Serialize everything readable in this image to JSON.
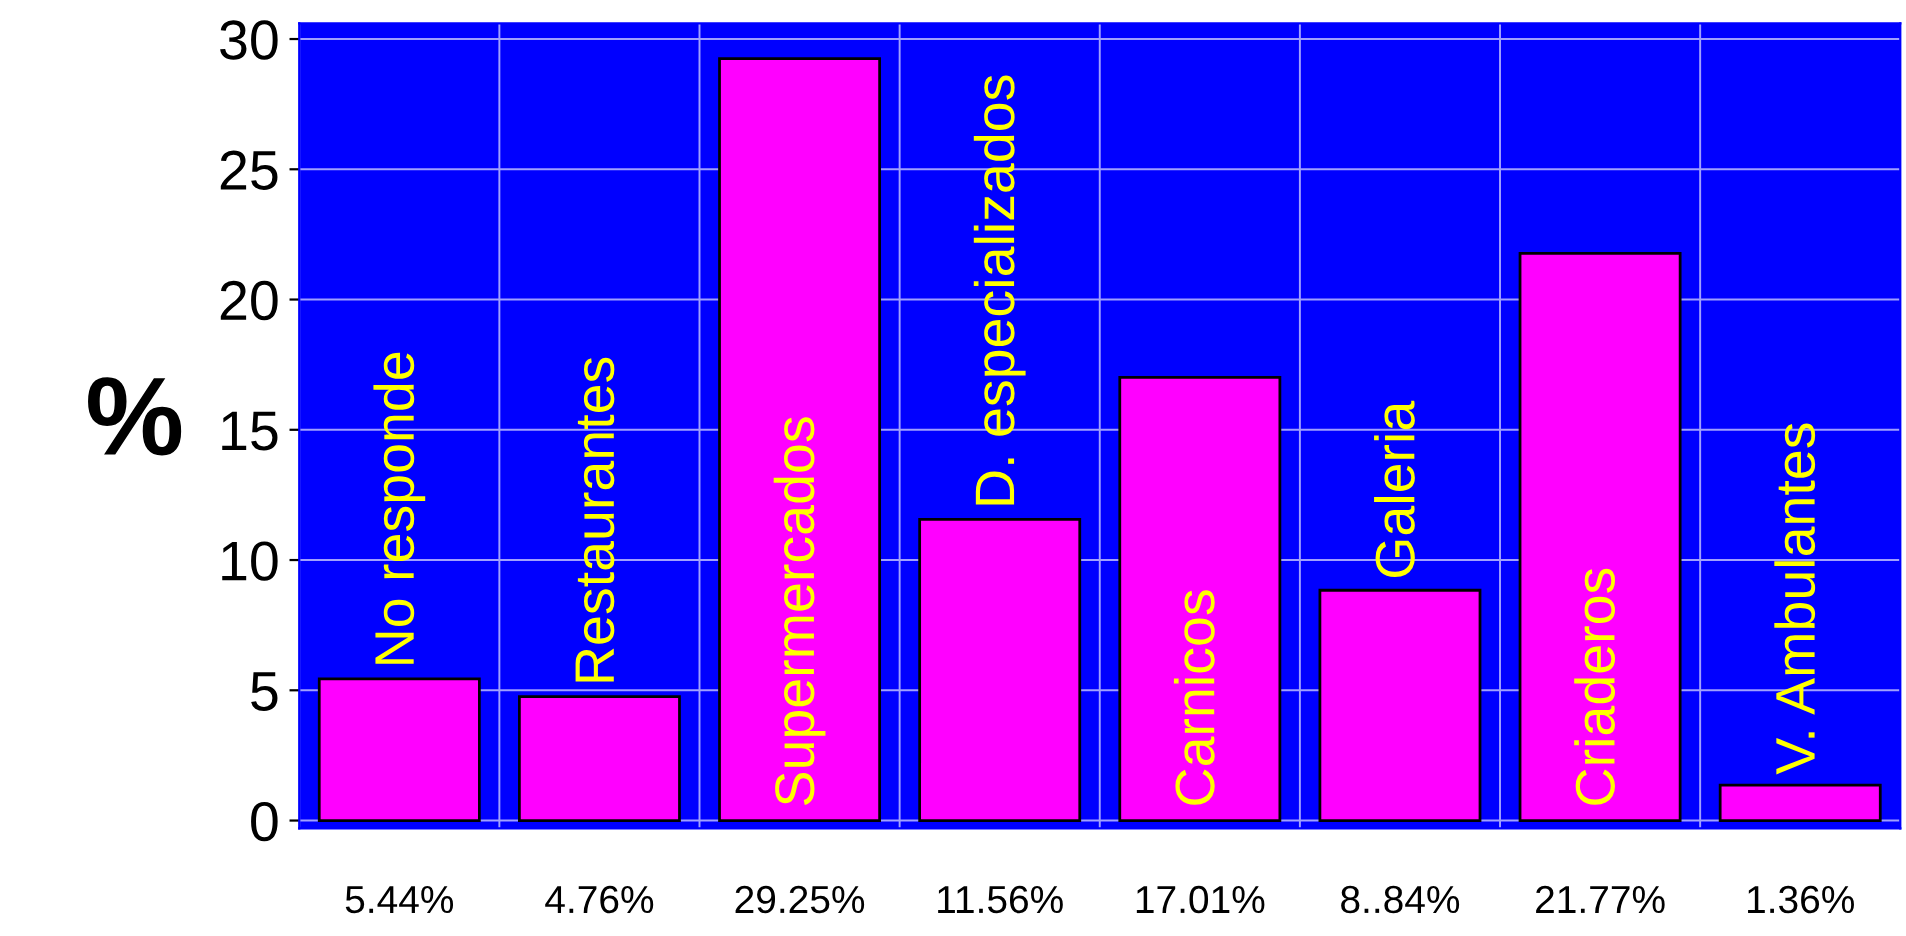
{
  "chart_data": {
    "type": "bar",
    "ylabel": "%",
    "categories": [
      "No responde",
      "Restaurantes",
      "Supermercados",
      "D. especializados",
      "Carnicos",
      "Galeria",
      "Criaderos",
      "V. Ambulantes"
    ],
    "values": [
      5.44,
      4.76,
      29.25,
      11.56,
      17.01,
      8.84,
      21.77,
      1.36
    ],
    "value_labels": [
      "5.44%",
      "4.76%",
      "29.25%",
      "11.56%",
      "17.01%",
      "8..84%",
      "21.77%",
      "1.36%"
    ],
    "color": "#ff00ff",
    "ylim": [
      -0.3,
      30.6
    ],
    "yticks": [
      0,
      5,
      10,
      15,
      20,
      25,
      30
    ],
    "grid": true
  }
}
